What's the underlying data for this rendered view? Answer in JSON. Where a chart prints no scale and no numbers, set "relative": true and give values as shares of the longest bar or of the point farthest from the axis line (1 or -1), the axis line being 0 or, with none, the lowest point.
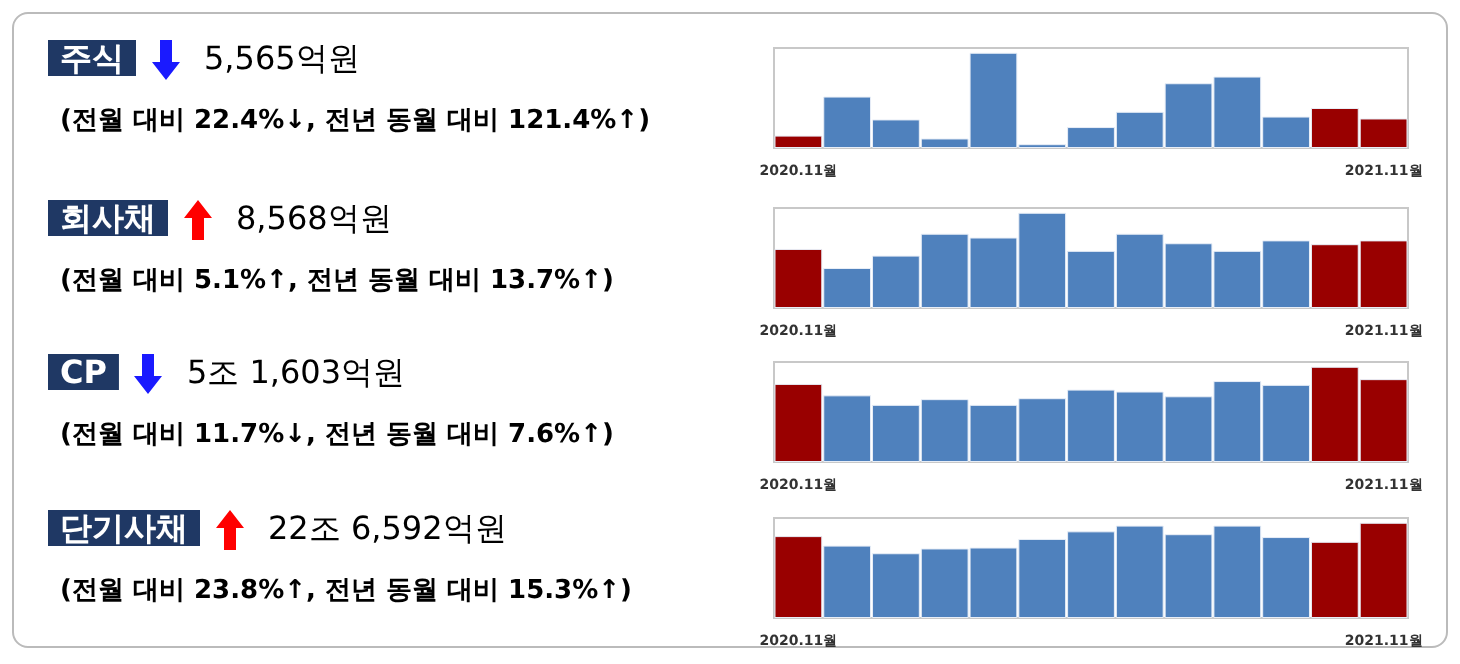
{
  "chart_data": [
    {
      "type": "bar",
      "relative": true,
      "annotations": [
        "주식",
        "5,565억원",
        "(전월 대비 22.4%↓, 전년 동월 대비 121.4%↑)"
      ],
      "categories": [
        "2020.11월",
        null,
        null,
        null,
        null,
        null,
        null,
        null,
        null,
        null,
        null,
        null,
        "2021.11월"
      ],
      "values": [
        0.13,
        0.54,
        0.3,
        0.1,
        1,
        0.04,
        0.22,
        0.38,
        0.68,
        0.75,
        0.33,
        0.42,
        0.31
      ],
      "colors": [
        "#990000",
        "#4f81bd",
        "#4f81bd",
        "#4f81bd",
        "#4f81bd",
        "#4f81bd",
        "#4f81bd",
        "#4f81bd",
        "#4f81bd",
        "#4f81bd",
        "#4f81bd",
        "#990000",
        "#990000"
      ]
    },
    {
      "type": "bar",
      "relative": true,
      "annotations": [
        "회사채",
        "8,568억원",
        "(전월 대비 5.1%↑, 전년 동월 대비 13.7%↑)"
      ],
      "categories": [
        "2020.11월",
        null,
        null,
        null,
        null,
        null,
        null,
        null,
        null,
        null,
        null,
        null,
        "2021.11월"
      ],
      "values": [
        0.62,
        0.42,
        0.55,
        0.78,
        0.74,
        1,
        0.6,
        0.78,
        0.68,
        0.6,
        0.71,
        0.67,
        0.71
      ],
      "colors": [
        "#990000",
        "#4f81bd",
        "#4f81bd",
        "#4f81bd",
        "#4f81bd",
        "#4f81bd",
        "#4f81bd",
        "#4f81bd",
        "#4f81bd",
        "#4f81bd",
        "#4f81bd",
        "#990000",
        "#990000"
      ]
    },
    {
      "type": "bar",
      "relative": true,
      "annotations": [
        "CP",
        "5조 1,603억원",
        "(전월 대비 11.7%↓, 전년 동월 대비 7.6%↑)"
      ],
      "categories": [
        "2020.11월",
        null,
        null,
        null,
        null,
        null,
        null,
        null,
        null,
        null,
        null,
        null,
        "2021.11월"
      ],
      "values": [
        0.82,
        0.7,
        0.6,
        0.66,
        0.6,
        0.67,
        0.76,
        0.74,
        0.69,
        0.85,
        0.81,
        1,
        0.87
      ],
      "colors": [
        "#990000",
        "#4f81bd",
        "#4f81bd",
        "#4f81bd",
        "#4f81bd",
        "#4f81bd",
        "#4f81bd",
        "#4f81bd",
        "#4f81bd",
        "#4f81bd",
        "#4f81bd",
        "#990000",
        "#990000"
      ]
    },
    {
      "type": "bar",
      "relative": true,
      "annotations": [
        "단기사채",
        "22조 6,592억원",
        "(전월 대비 23.8%↑, 전년 동월 대비 15.3%↑)"
      ],
      "categories": [
        "2020.11월",
        null,
        null,
        null,
        null,
        null,
        null,
        null,
        null,
        null,
        null,
        null,
        "2021.11월"
      ],
      "values": [
        0.86,
        0.76,
        0.68,
        0.73,
        0.74,
        0.83,
        0.91,
        0.97,
        0.88,
        0.97,
        0.85,
        0.8,
        1
      ],
      "colors": [
        "#990000",
        "#4f81bd",
        "#4f81bd",
        "#4f81bd",
        "#4f81bd",
        "#4f81bd",
        "#4f81bd",
        "#4f81bd",
        "#4f81bd",
        "#4f81bd",
        "#4f81bd",
        "#990000",
        "#990000"
      ]
    }
  ]
}
